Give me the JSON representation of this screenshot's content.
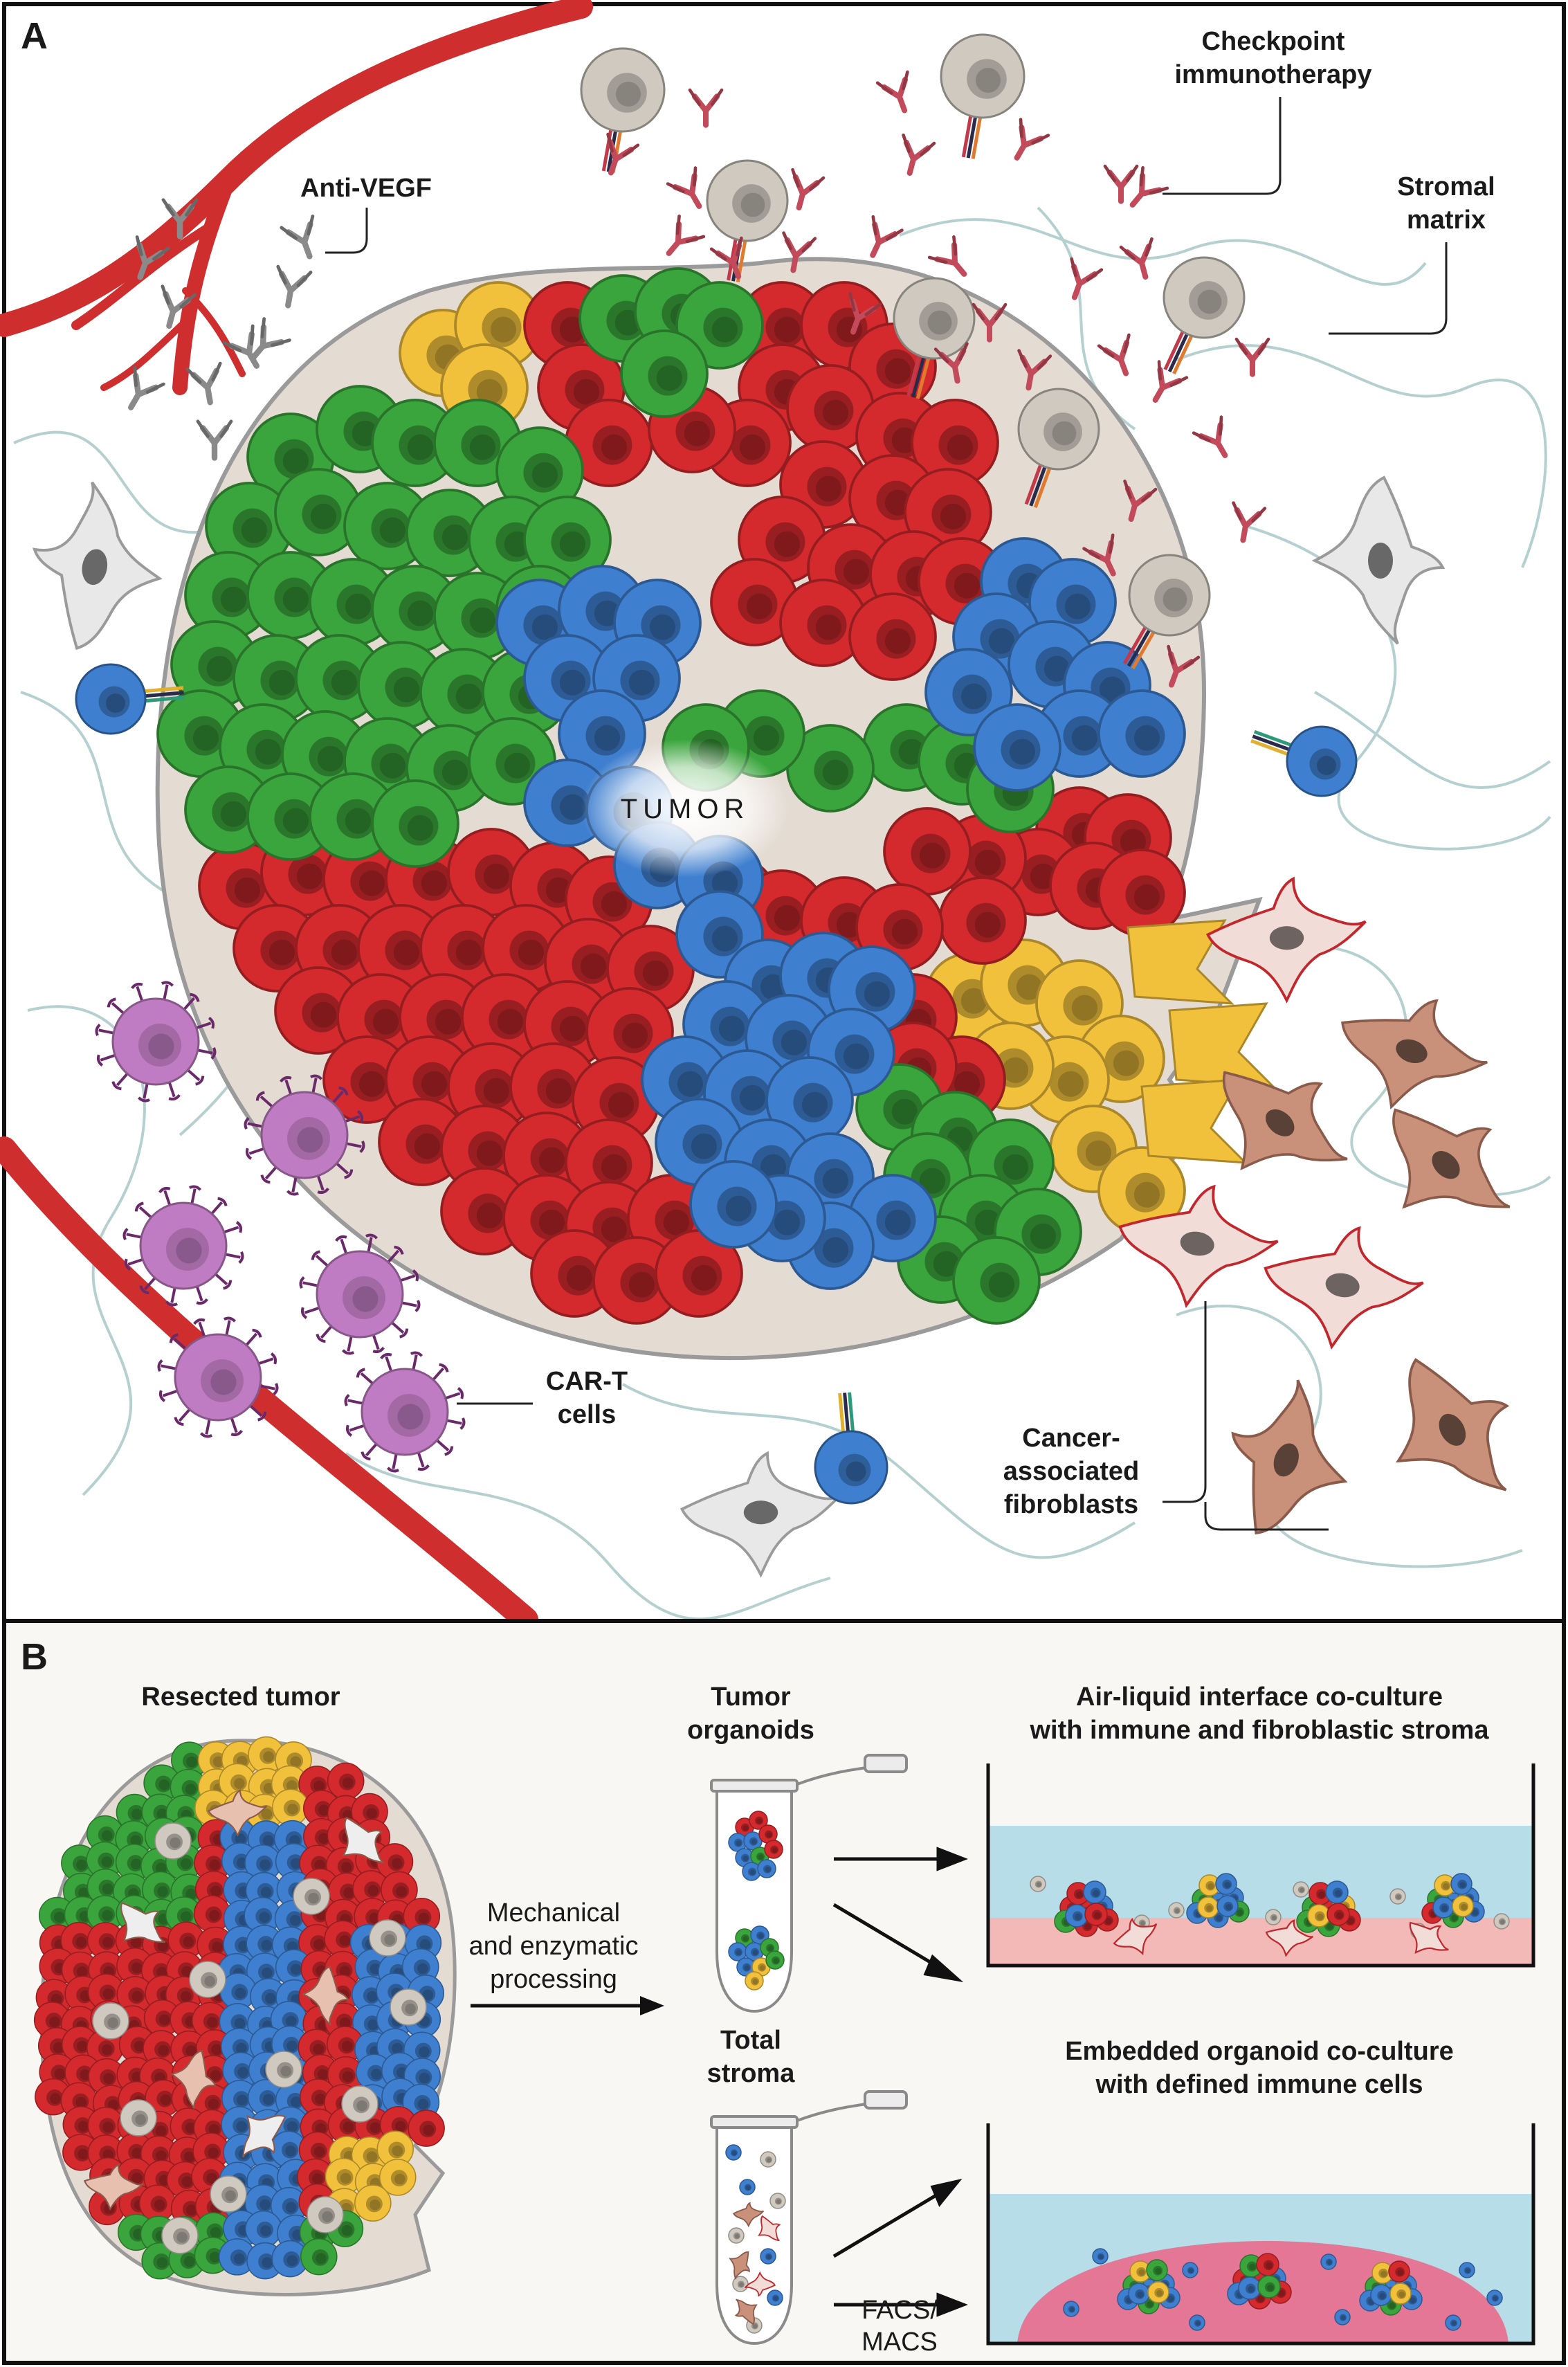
{
  "panel_a": {
    "letter": "A",
    "center_label": "TUMOR",
    "labels": {
      "anti_vegf": "Anti-VEGF",
      "checkpoint_1": "Checkpoint",
      "checkpoint_2": "immunotherapy",
      "stromal_1": "Stromal",
      "stromal_2": "matrix",
      "cart_1": "CAR-T",
      "cart_2": "cells",
      "caf_1": "Cancer-",
      "caf_2": "associated",
      "caf_3": "fibroblasts"
    }
  },
  "panel_b": {
    "letter": "B",
    "resected_tumor": "Resected tumor",
    "processing_1": "Mechanical",
    "processing_2": "and enzymatic",
    "processing_3": "processing",
    "organoids_1": "Tumor",
    "organoids_2": "organoids",
    "stroma_1": "Total",
    "stroma_2": "stroma",
    "ali_1": "Air-liquid interface co-culture",
    "ali_2": "with immune and fibroblastic stroma",
    "embedded_1": "Embedded organoid co-culture",
    "embedded_2": "with defined immune cells",
    "facs_1": "FACS/",
    "facs_2": "MACS"
  },
  "colors": {
    "red_cell": "#d42a2e",
    "green_cell": "#3aa53c",
    "blue_cell": "#3f7fcf",
    "yellow_cell": "#f2c13c",
    "vessel": "#cf2e2e",
    "tcell": "#cfc9c0",
    "cart": "#c07cc2",
    "caf": "#c9917a",
    "antibody_red": "#c24a5a",
    "antibody_gray": "#8a8a8a",
    "stroma_fiber": "#a9c8c8"
  }
}
